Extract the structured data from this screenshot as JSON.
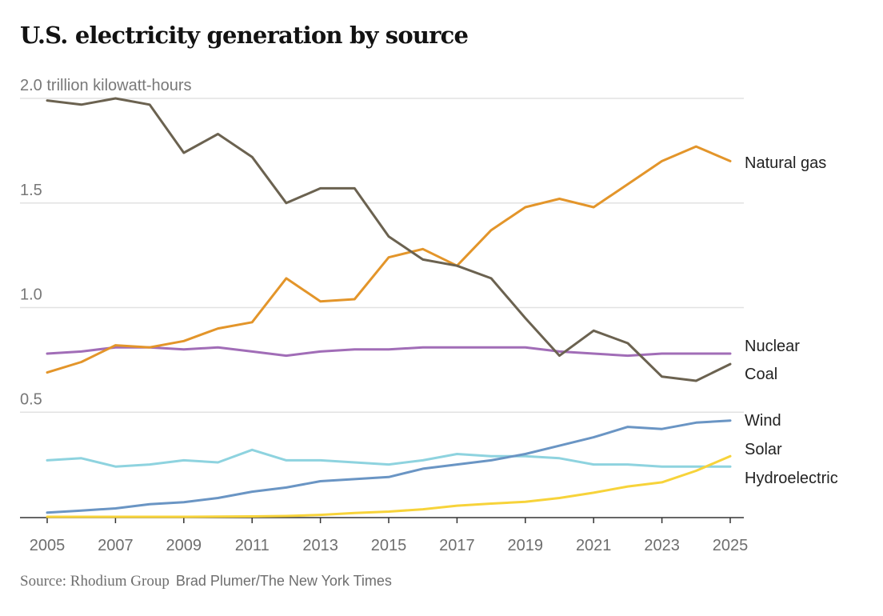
{
  "chart_data": {
    "type": "line",
    "title": "U.S. electricity generation by source",
    "ylabel": "trillion kilowatt-hours",
    "xlabel": "",
    "y_unit_label": "2.0 trillion kilowatt-hours",
    "ylim": [
      0,
      2.0
    ],
    "yticks": [
      {
        "value": 2.0,
        "label": "2.0 trillion kilowatt-hours"
      },
      {
        "value": 1.5,
        "label": "1.5"
      },
      {
        "value": 1.0,
        "label": "1.0"
      },
      {
        "value": 0.5,
        "label": "0.5"
      }
    ],
    "xlim": [
      2005,
      2025
    ],
    "xticks": [
      "2005",
      "2007",
      "2009",
      "2011",
      "2013",
      "2015",
      "2017",
      "2019",
      "2021",
      "2023",
      "2025"
    ],
    "x": [
      2005,
      2006,
      2007,
      2008,
      2009,
      2010,
      2011,
      2012,
      2013,
      2014,
      2015,
      2016,
      2017,
      2018,
      2019,
      2020,
      2021,
      2022,
      2023,
      2024,
      2025
    ],
    "grid": true,
    "legend": "direct labels at right end of lines",
    "series": [
      {
        "name": "Natural gas",
        "color": "#e3952a",
        "values": [
          0.69,
          0.74,
          0.82,
          0.81,
          0.84,
          0.9,
          0.93,
          1.14,
          1.03,
          1.04,
          1.24,
          1.28,
          1.2,
          1.37,
          1.48,
          1.52,
          1.48,
          1.59,
          1.7,
          1.77,
          1.7
        ]
      },
      {
        "name": "Nuclear",
        "color": "#a16db7",
        "values": [
          0.78,
          0.79,
          0.81,
          0.81,
          0.8,
          0.81,
          0.79,
          0.77,
          0.79,
          0.8,
          0.8,
          0.81,
          0.81,
          0.81,
          0.81,
          0.79,
          0.78,
          0.77,
          0.78,
          0.78,
          0.78
        ]
      },
      {
        "name": "Coal",
        "color": "#6b6250",
        "values": [
          1.99,
          1.97,
          2.0,
          1.97,
          1.74,
          1.83,
          1.72,
          1.5,
          1.57,
          1.57,
          1.34,
          1.23,
          1.2,
          1.14,
          0.95,
          0.77,
          0.89,
          0.83,
          0.67,
          0.65,
          0.73
        ]
      },
      {
        "name": "Wind",
        "color": "#6a95c4",
        "values": [
          0.02,
          0.03,
          0.04,
          0.06,
          0.07,
          0.09,
          0.12,
          0.14,
          0.17,
          0.18,
          0.19,
          0.23,
          0.25,
          0.27,
          0.3,
          0.34,
          0.38,
          0.43,
          0.42,
          0.45,
          0.46
        ]
      },
      {
        "name": "Solar",
        "color": "#f7d33a",
        "values": [
          0.0,
          0.0,
          0.0,
          0.0,
          0.0,
          0.001,
          0.002,
          0.004,
          0.009,
          0.018,
          0.025,
          0.036,
          0.053,
          0.063,
          0.072,
          0.09,
          0.115,
          0.145,
          0.165,
          0.22,
          0.29
        ]
      },
      {
        "name": "Hydroelectric",
        "color": "#8ed3df",
        "values": [
          0.27,
          0.28,
          0.24,
          0.25,
          0.27,
          0.26,
          0.32,
          0.27,
          0.27,
          0.26,
          0.25,
          0.27,
          0.3,
          0.29,
          0.29,
          0.28,
          0.25,
          0.25,
          0.24,
          0.24,
          0.24
        ]
      }
    ],
    "series_labels": [
      "Natural gas",
      "Nuclear",
      "Coal",
      "Wind",
      "Solar",
      "Hydroelectric"
    ],
    "annotations": []
  },
  "footer": {
    "source": "Source: Rhodium Group",
    "credit": "Brad Plumer/The New York Times"
  }
}
